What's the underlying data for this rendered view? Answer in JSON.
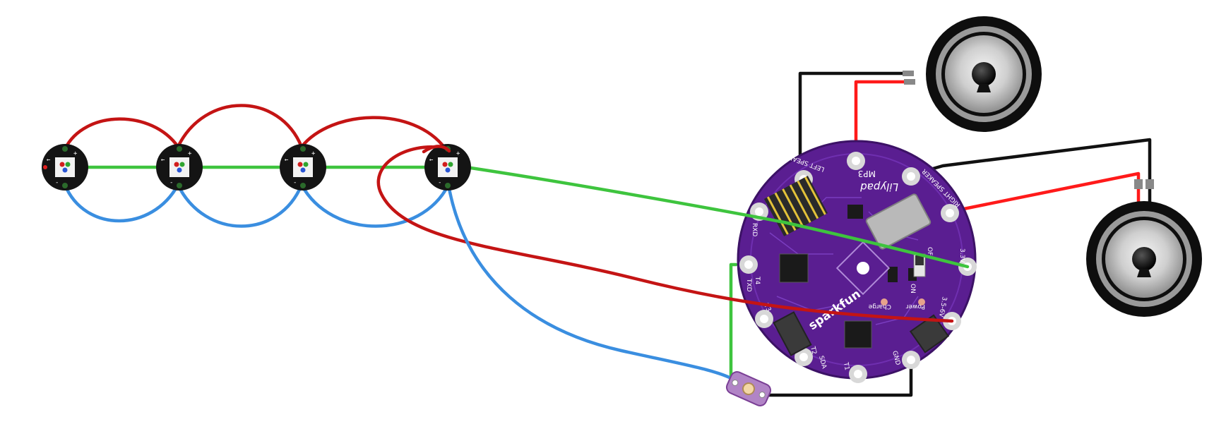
{
  "diagram": {
    "board": {
      "brand": "sparkfun",
      "name": "MP3",
      "script": "Lilypad",
      "pins": {
        "left_speaker": "LEFT SPEAKER",
        "right_speaker": "RIGHT SPEAKER",
        "v33": "3.3V",
        "vin": "3.5-6V",
        "gnd": "GND",
        "sda": "SDA",
        "t2": "T2",
        "t1": "T1",
        "t4": "T4",
        "t3": "T3",
        "txd": "TXD",
        "rxd": "RXD",
        "power": "Power",
        "charge": "Charge",
        "on": "ON",
        "off": "OFF"
      }
    },
    "led_marks": {
      "plus": "+",
      "minus": "-",
      "arrow": "←"
    },
    "colors": {
      "board": "#5a1e91",
      "board_edge": "#3c1266",
      "wire_green": "#3ec43e",
      "wire_red": "#c41414",
      "wire_bright_red": "#ff1a1a",
      "wire_blue": "#3a8ee0",
      "wire_black": "#111111",
      "led_pcb": "#141414",
      "speaker_ring": "#9a9a9a"
    }
  }
}
